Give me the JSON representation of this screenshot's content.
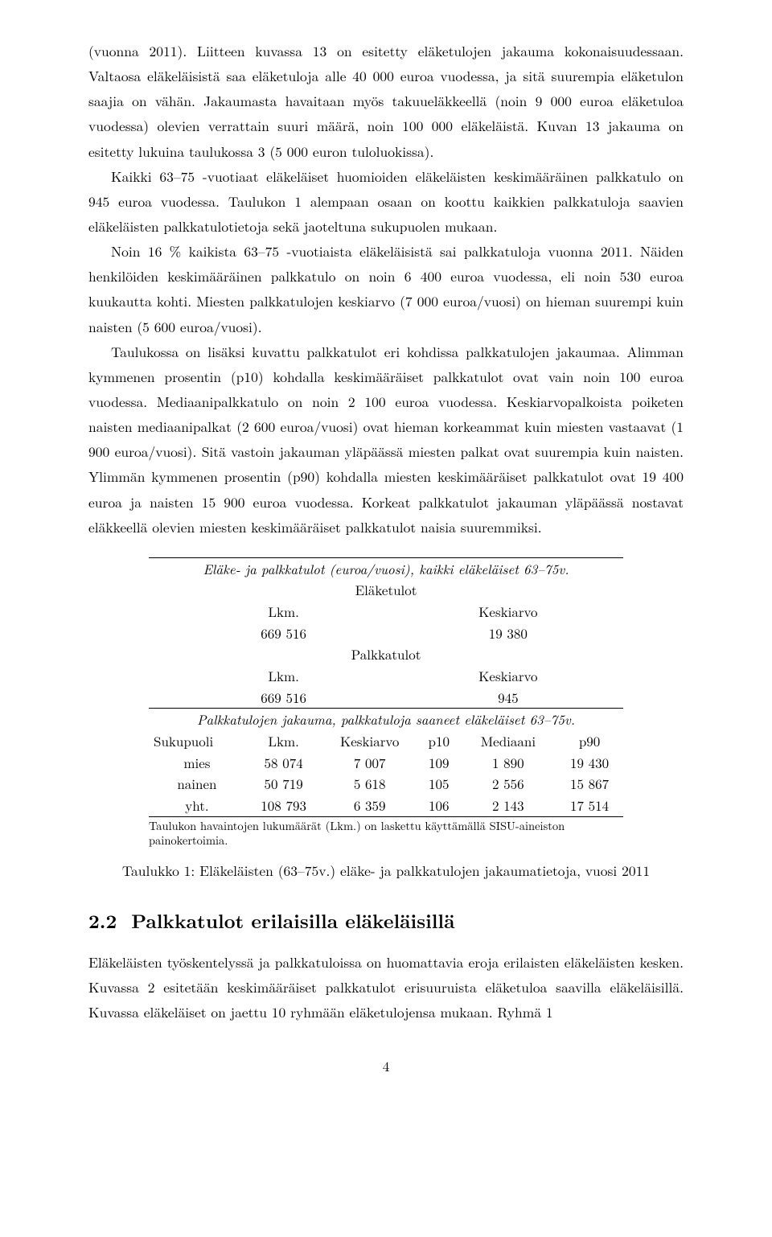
{
  "paragraphs": {
    "p1": "(vuonna 2011). Liitteen kuvassa 13 on esitetty eläketulojen jakauma kokonaisuudessaan. Valtaosa eläkeläisistä saa eläketuloja alle 40 000 euroa vuodessa, ja sitä suurempia eläketulon saajia on vähän. Jakaumasta havaitaan myös takuueläkkeellä (noin 9 000 euroa eläketuloa vuodessa) olevien verrattain suuri määrä, noin 100 000 eläkeläistä. Kuvan 13 jakauma on esitetty lukuina taulukossa 3 (5 000 euron tuloluokissa).",
    "p2": "Kaikki 63–75 -vuotiaat eläkeläiset huomioiden eläkeläisten keskimääräinen palkkatulo on 945 euroa vuodessa. Taulukon 1 alempaan osaan on koottu kaikkien palkkatuloja saavien eläkeläisten palkkatulotietoja sekä jaoteltuna sukupuolen mukaan.",
    "p3": "Noin 16 % kaikista 63–75 -vuotiaista eläkeläisistä sai palkkatuloja vuonna 2011. Näiden henkilöiden keskimääräinen palkkatulo on noin 6 400 euroa vuodessa, eli noin 530 euroa kuukautta kohti. Miesten palkkatulojen keskiarvo (7 000 euroa/vuosi) on hieman suurempi kuin naisten (5 600 euroa/vuosi).",
    "p4": "Taulukossa on lisäksi kuvattu palkkatulot eri kohdissa palkkatulojen jakaumaa. Alimman kymmenen prosentin (p10) kohdalla keskimääräiset palkkatulot ovat vain noin 100 euroa vuodessa. Mediaanipalkkatulo on noin 2 100 euroa vuodessa. Keskiarvopalkoista poiketen naisten mediaanipalkat (2 600 euroa/vuosi) ovat hieman korkeammat kuin miesten vastaavat (1 900 euroa/vuosi). Sitä vastoin jakauman yläpäässä miesten palkat ovat suurempia kuin naisten. Ylimmän kymmenen prosentin (p90) kohdalla miesten keskimääräiset palkkatulot ovat 19 400 euroa ja naisten 15 900 euroa vuodessa. Korkeat palkkatulot jakauman yläpäässä nostavat eläkkeellä olevien miesten keskimääräiset palkkatulot naisia suuremmiksi.",
    "p5": "Eläkeläisten työskentelyssä ja palkkatuloissa on huomattavia eroja erilaisten eläkeläisten kesken. Kuvassa 2 esitetään keskimääräiset palkkatulot erisuuruista eläketuloa saavilla eläkeläisillä. Kuvassa eläkeläiset on jaettu 10 ryhmään eläketulojensa mukaan. Ryhmä 1"
  },
  "table": {
    "title_top": "Eläke- ja palkkatulot (euroa/vuosi), kaikki eläkeläiset 63–75v.",
    "sec1_label": "Eläketulot",
    "lkm_label": "Lkm.",
    "keskiarvo_label": "Keskiarvo",
    "sec1_lkm": "669 516",
    "sec1_ka": "19 380",
    "sec2_label": "Palkkatulot",
    "sec2_lkm": "669 516",
    "sec2_ka": "945",
    "title_mid": "Palkkatulojen jakauma, palkkatuloja saaneet eläkeläiset 63–75v.",
    "hdr": {
      "c1": "Sukupuoli",
      "c2": "Lkm.",
      "c3": "Keskiarvo",
      "c4": "p10",
      "c5": "Mediaani",
      "c6": "p90"
    },
    "rows": [
      {
        "c1": "mies",
        "c2": "58 074",
        "c3": "7 007",
        "c4": "109",
        "c5": "1 890",
        "c6": "19 430"
      },
      {
        "c1": "nainen",
        "c2": "50 719",
        "c3": "5 618",
        "c4": "105",
        "c5": "2 556",
        "c6": "15 867"
      },
      {
        "c1": "yht.",
        "c2": "108 793",
        "c3": "6 359",
        "c4": "106",
        "c5": "2 143",
        "c6": "17 514"
      }
    ],
    "footnote": "Taulukon havaintojen lukumäärät (Lkm.) on laskettu käyttämällä SISU-aineiston painokertoimia.",
    "caption": "Taulukko 1: Eläkeläisten (63–75v.) eläke- ja palkkatulojen jakaumatietoja, vuosi 2011"
  },
  "section": {
    "num": "2.2",
    "title": "Palkkatulot erilaisilla eläkeläisillä"
  },
  "pagenum": "4"
}
